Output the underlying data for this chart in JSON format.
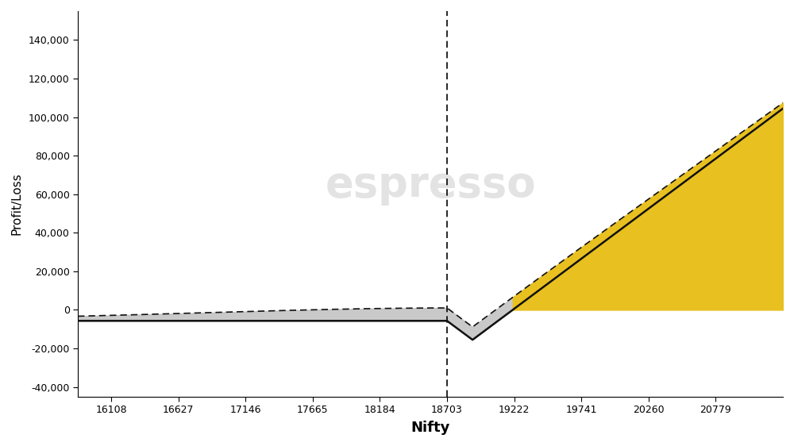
{
  "xlabel": "Nifty",
  "ylabel": "Profit/Loss",
  "watermark": "espresso",
  "xlim": [
    15850,
    21300
  ],
  "ylim": [
    -45000,
    155000
  ],
  "xticks": [
    16108,
    16627,
    17146,
    17665,
    18184,
    18703,
    19222,
    19741,
    20260,
    20779
  ],
  "yticks": [
    -40000,
    -20000,
    0,
    20000,
    40000,
    60000,
    80000,
    100000,
    120000,
    140000
  ],
  "vline_x": 18703,
  "K1": 18703,
  "K2": 19300,
  "lot": 50,
  "flat_level": -5700,
  "current_flat": 0,
  "current_slope_start": 19300,
  "current_slope_per_unit": 50,
  "gray_fill_color": "#c0c0c0",
  "yellow_fill_color": "#e8c020",
  "background_color": "#ffffff",
  "line_color": "#111111"
}
